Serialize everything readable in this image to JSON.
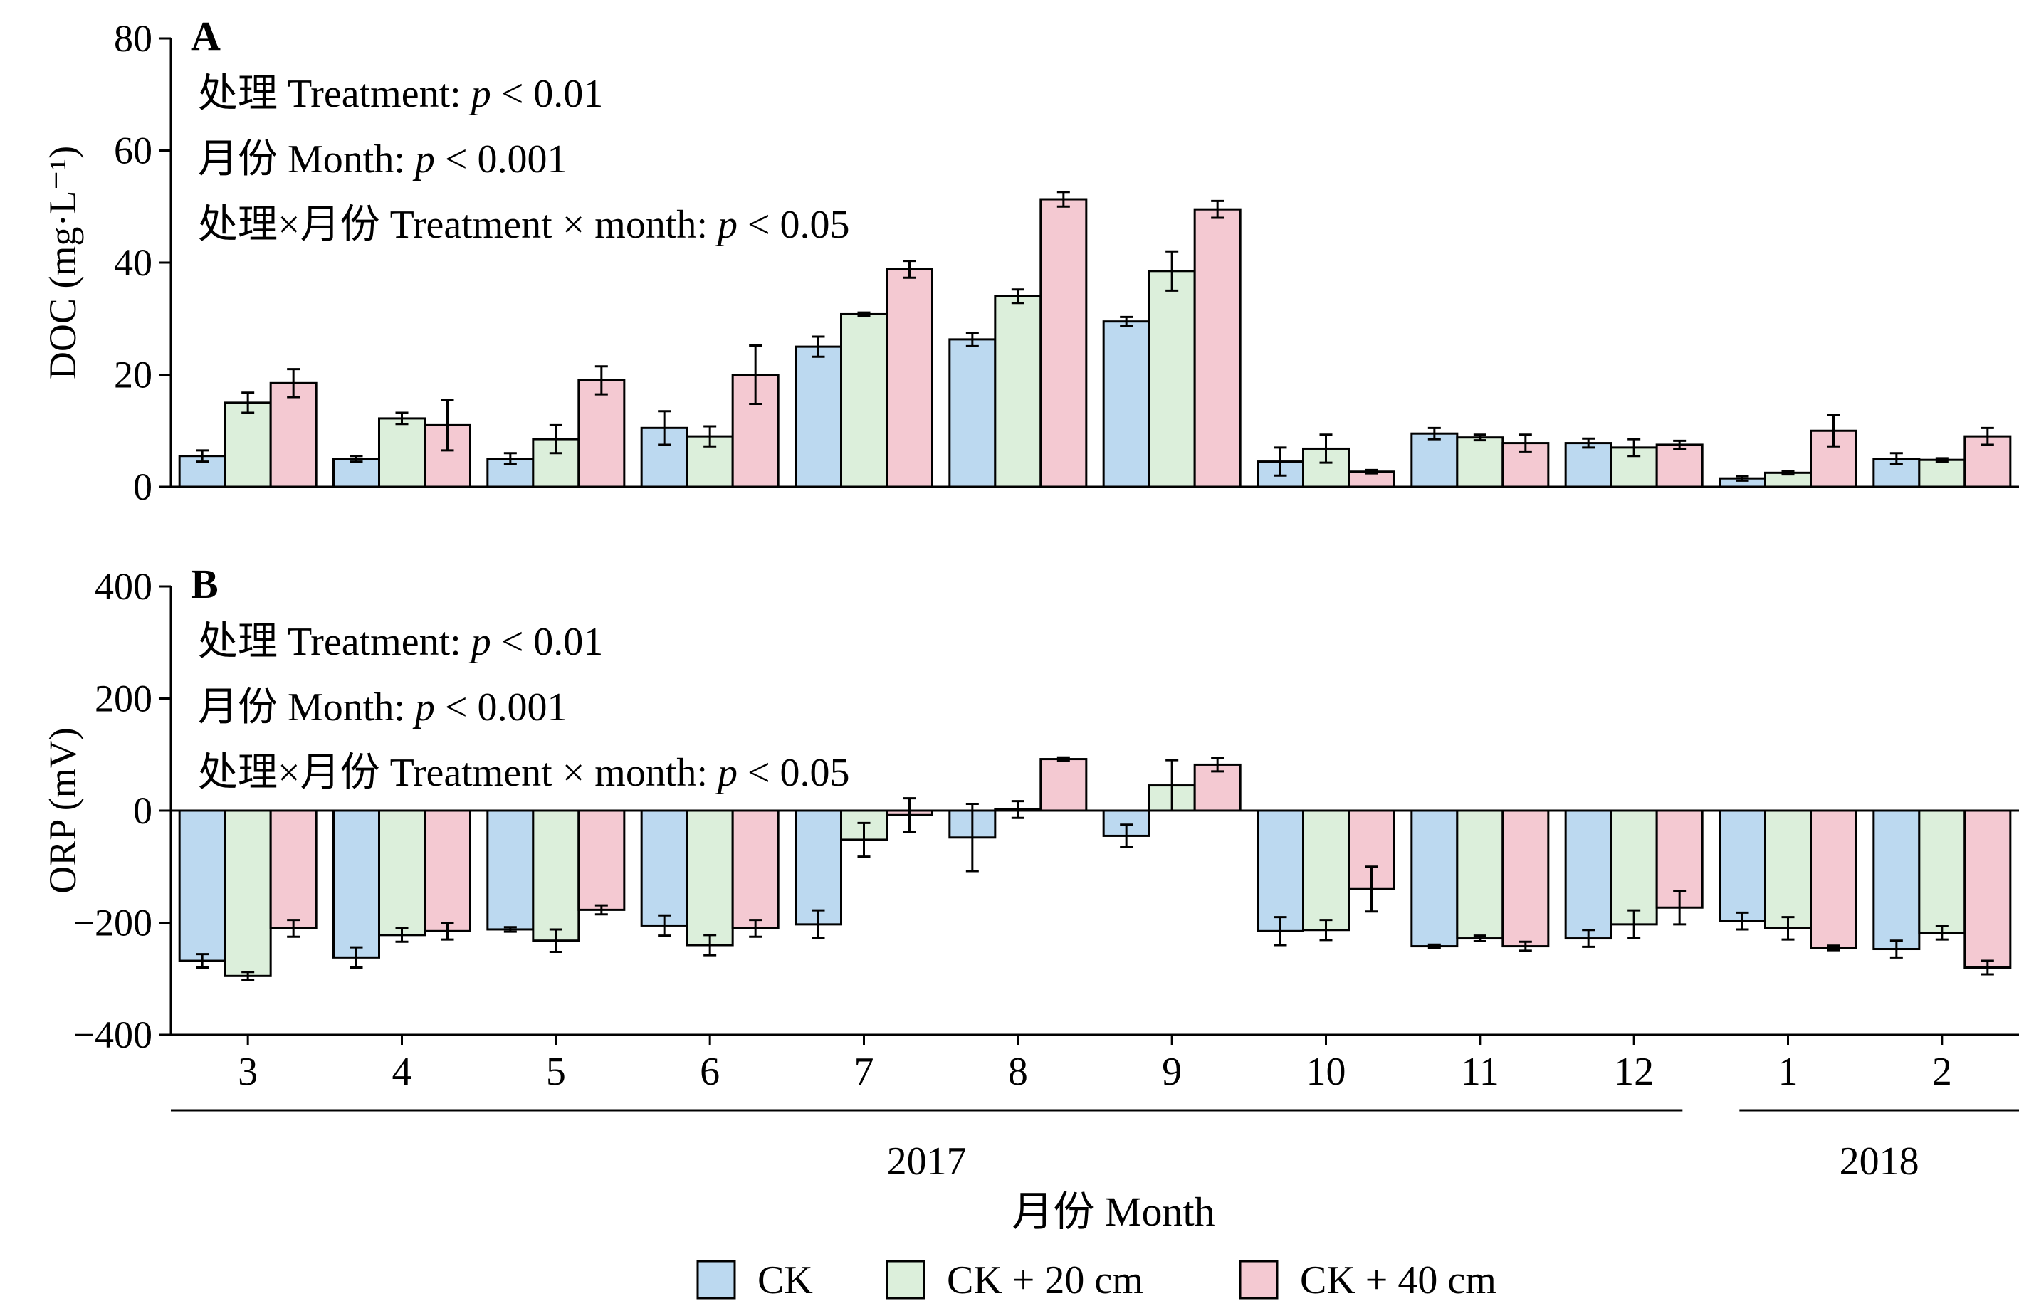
{
  "chart_data": [
    {
      "panel_label": "A",
      "type": "bar",
      "ylabel": "DOC (mg·L⁻¹)",
      "ylim": [
        0,
        80
      ],
      "yticks": [
        0,
        20,
        40,
        60,
        80
      ],
      "stats": [
        {
          "prefix": "处理 Treatment: ",
          "p": "p",
          "suffix": " < 0.01"
        },
        {
          "prefix": "月份 Month: ",
          "p": "p",
          "suffix": " < 0.001"
        },
        {
          "prefix": "处理×月份 Treatment × month: ",
          "p": "p",
          "suffix": " < 0.05"
        }
      ],
      "series": [
        {
          "name": "CK",
          "values": [
            5.5,
            5.0,
            5.0,
            10.5,
            25.0,
            26.3,
            29.5,
            4.5,
            9.5,
            7.8,
            1.5,
            5.0
          ],
          "errors": [
            1.0,
            0.5,
            1.0,
            3.0,
            1.8,
            1.2,
            0.8,
            2.5,
            1.0,
            0.8,
            0.4,
            1.0
          ]
        },
        {
          "name": "CK + 20 cm",
          "values": [
            15.0,
            12.2,
            8.5,
            9.0,
            30.8,
            34.0,
            38.5,
            6.8,
            8.8,
            7.0,
            2.5,
            4.8
          ],
          "errors": [
            1.8,
            1.0,
            2.5,
            1.8,
            0.3,
            1.2,
            3.5,
            2.5,
            0.5,
            1.5,
            0.3,
            0.3
          ]
        },
        {
          "name": "CK + 40 cm",
          "values": [
            18.5,
            11.0,
            19.0,
            20.0,
            38.8,
            51.3,
            49.5,
            2.7,
            7.8,
            7.5,
            10.0,
            9.0
          ],
          "errors": [
            2.5,
            4.5,
            2.5,
            5.2,
            1.5,
            1.3,
            1.5,
            0.3,
            1.5,
            0.7,
            2.8,
            1.5
          ]
        }
      ]
    },
    {
      "panel_label": "B",
      "type": "bar",
      "ylabel": "ORP (mV)",
      "ylim": [
        -400,
        400
      ],
      "yticks": [
        -400,
        -200,
        0,
        200,
        400
      ],
      "ytick_labels": [
        "−400",
        "−200",
        "0",
        "200",
        "400"
      ],
      "stats": [
        {
          "prefix": "处理 Treatment: ",
          "p": "p",
          "suffix": " < 0.01"
        },
        {
          "prefix": "月份 Month: ",
          "p": "p",
          "suffix": " < 0.001"
        },
        {
          "prefix": "处理×月份 Treatment × month: ",
          "p": "p",
          "suffix": " < 0.05"
        }
      ],
      "series": [
        {
          "name": "CK",
          "values": [
            -268,
            -262,
            -212,
            -205,
            -203,
            -48,
            -45,
            -215,
            -242,
            -228,
            -197,
            -247
          ],
          "errors": [
            12,
            18,
            4,
            18,
            25,
            60,
            20,
            25,
            3,
            15,
            15,
            15
          ]
        },
        {
          "name": "CK + 20 cm",
          "values": [
            -295,
            -222,
            -232,
            -240,
            -52,
            2,
            45,
            -213,
            -228,
            -203,
            -210,
            -218
          ],
          "errors": [
            7,
            12,
            20,
            18,
            30,
            15,
            45,
            18,
            5,
            25,
            20,
            12
          ]
        },
        {
          "name": "CK + 40 cm",
          "values": [
            -210,
            -215,
            -177,
            -210,
            -8,
            92,
            82,
            -140,
            -242,
            -173,
            -245,
            -280
          ],
          "errors": [
            15,
            15,
            8,
            15,
            30,
            3,
            12,
            40,
            8,
            30,
            4,
            12
          ]
        }
      ]
    }
  ],
  "x_axis": {
    "categories": [
      "3",
      "4",
      "5",
      "6",
      "7",
      "8",
      "9",
      "10",
      "11",
      "12",
      "1",
      "2"
    ],
    "years": [
      {
        "label": "2017",
        "from": 0,
        "to": 9
      },
      {
        "label": "2018",
        "from": 10,
        "to": 11
      }
    ],
    "xlabel": "月份 Month"
  },
  "legend": {
    "placement": "bottom-center",
    "items": [
      "CK",
      "CK + 20 cm",
      "CK + 40 cm"
    ]
  },
  "colors": {
    "CK": "#bcd9f0",
    "CK + 20 cm": "#dcefdb",
    "CK + 40 cm": "#f4c9d2",
    "stroke": "#000000"
  }
}
